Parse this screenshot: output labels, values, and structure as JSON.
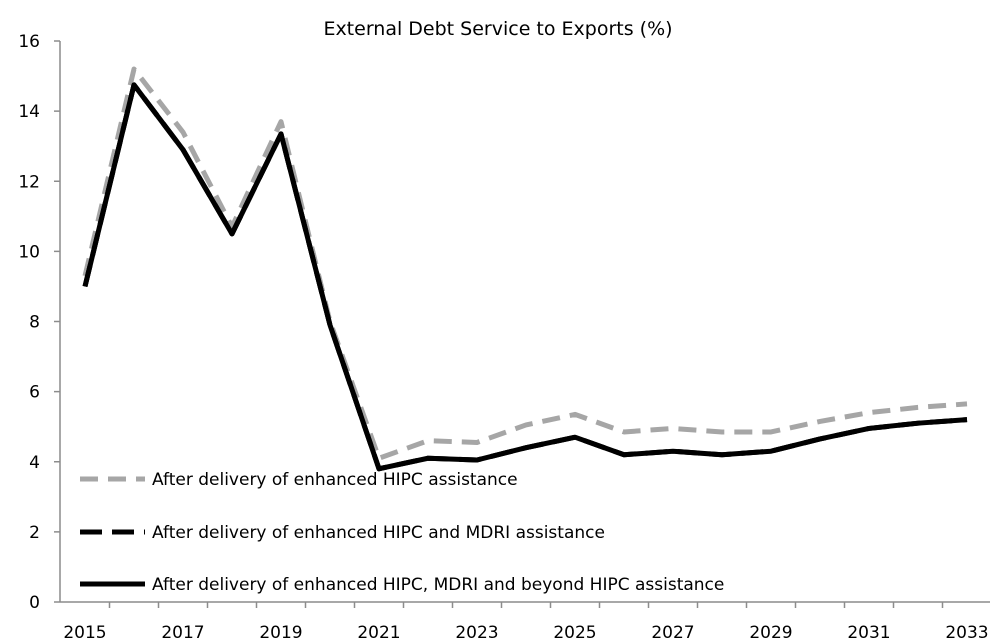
{
  "chart_data": {
    "type": "line",
    "title": "External Debt Service to Exports (%)",
    "xlabel": "",
    "ylabel": "",
    "ylim": [
      0,
      16
    ],
    "yticks": [
      0,
      2,
      4,
      6,
      8,
      10,
      12,
      14,
      16
    ],
    "x": [
      2015,
      2016,
      2017,
      2018,
      2019,
      2020,
      2021,
      2022,
      2023,
      2024,
      2025,
      2026,
      2027,
      2028,
      2029,
      2030,
      2031,
      2032,
      2033
    ],
    "x_tick_labels": [
      "2015",
      "2017",
      "2019",
      "2021",
      "2023",
      "2025",
      "2027",
      "2029",
      "2031",
      "2033"
    ],
    "series": [
      {
        "name": "After delivery of enhanced HIPC assistance",
        "color": "#a6a6a6",
        "style": "dashed",
        "values": [
          9.3,
          15.2,
          13.4,
          10.7,
          13.7,
          8.0,
          4.1,
          4.6,
          4.55,
          5.05,
          5.35,
          4.85,
          4.95,
          4.85,
          4.85,
          5.15,
          5.4,
          5.55,
          5.65
        ]
      },
      {
        "name": "After delivery of enhanced HIPC and MDRI assistance",
        "color": "#000000",
        "style": "dashed",
        "values": [
          9.0,
          14.75,
          12.9,
          10.5,
          13.35,
          7.9,
          3.8,
          4.1,
          4.05,
          4.4,
          4.7,
          4.2,
          4.3,
          4.2,
          4.3,
          4.65,
          4.95,
          5.1,
          5.2
        ]
      },
      {
        "name": "After delivery of enhanced HIPC, MDRI and beyond HIPC assistance",
        "color": "#000000",
        "style": "solid",
        "values": [
          9.0,
          14.75,
          12.9,
          10.5,
          13.35,
          7.9,
          3.8,
          4.1,
          4.05,
          4.4,
          4.7,
          4.2,
          4.3,
          4.2,
          4.3,
          4.65,
          4.95,
          5.1,
          5.2
        ]
      }
    ],
    "legend_position": "bottom-left",
    "grid": false
  }
}
